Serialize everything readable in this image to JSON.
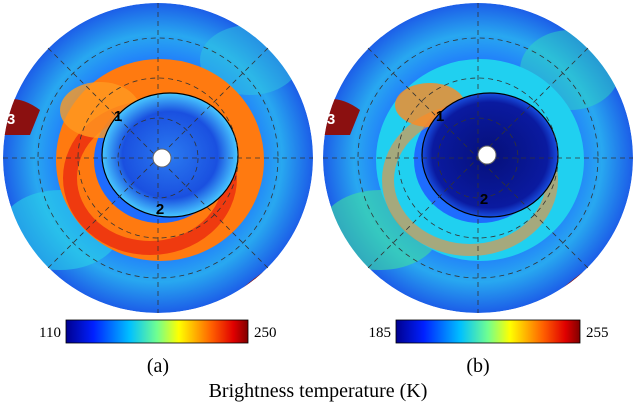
{
  "panels": [
    {
      "label": "(a)",
      "colorbar": {
        "min": "110",
        "max": "250"
      },
      "regions": [
        "1",
        "2",
        "3"
      ]
    },
    {
      "label": "(b)",
      "colorbar": {
        "min": "185",
        "max": "255"
      },
      "regions": [
        "1",
        "2",
        "3"
      ]
    }
  ],
  "caption": "Brightness temperature (K)"
}
